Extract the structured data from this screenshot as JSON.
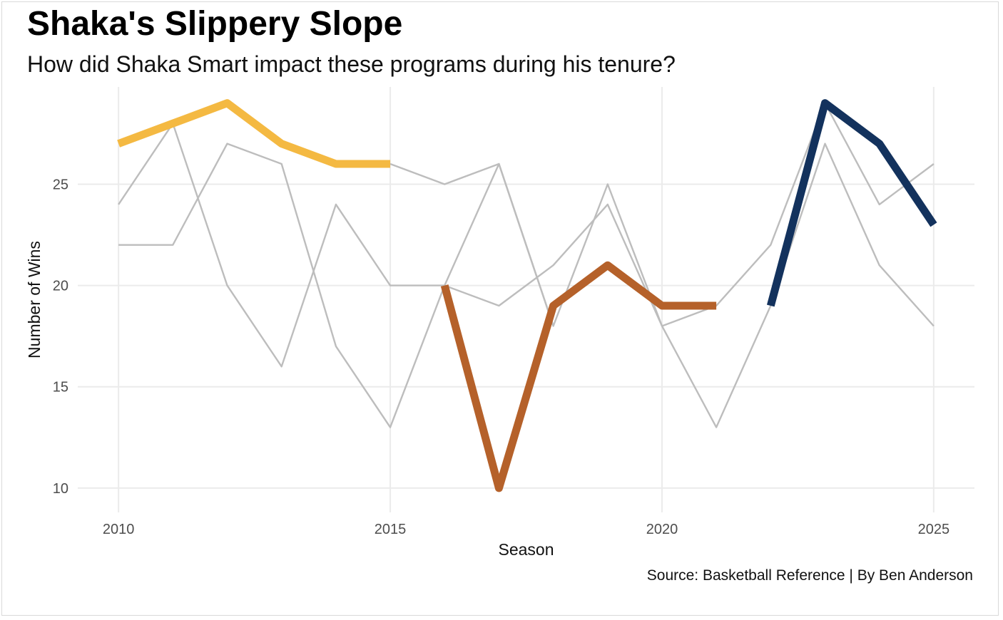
{
  "header": {
    "title": "Shaka's Slippery Slope",
    "subtitle": "How did Shaka Smart impact these programs during his tenure?"
  },
  "caption": "Source: Basketball Reference | By Ben Anderson",
  "chart_data": {
    "type": "line",
    "title": "Shaka's Slippery Slope",
    "subtitle": "How did Shaka Smart impact these programs during his tenure?",
    "xlabel": "Season",
    "ylabel": "Number of Wins",
    "xlim": [
      2009.25,
      2025.75
    ],
    "ylim": [
      8.8,
      29.8
    ],
    "x_ticks": [
      2010,
      2015,
      2020,
      2025
    ],
    "y_ticks": [
      10,
      15,
      20,
      25
    ],
    "x_tick_labels": [
      "2010",
      "2015",
      "2020",
      "2025"
    ],
    "y_tick_labels": [
      "10",
      "15",
      "20",
      "25"
    ],
    "grid": true,
    "legend": "none",
    "background_series": [
      {
        "color": "#bdbdbd",
        "x": [
          2010,
          2011,
          2012,
          2013,
          2014,
          2015,
          2016,
          2017,
          2018,
          2019,
          2020,
          2021,
          2022,
          2023,
          2024,
          2025
        ],
        "values": [
          24,
          28,
          20,
          16,
          24,
          20,
          20,
          19,
          21,
          24,
          18,
          19,
          22,
          29,
          24,
          26
        ]
      },
      {
        "color": "#bdbdbd",
        "x": [
          2010,
          2011,
          2012,
          2013,
          2014,
          2015,
          2016,
          2017,
          2018,
          2019,
          2020,
          2021,
          2022,
          2023,
          2024,
          2025
        ],
        "values": [
          22,
          22,
          27,
          26,
          17,
          13,
          20,
          26,
          18,
          25,
          18,
          13,
          19,
          27,
          21,
          18
        ]
      },
      {
        "color": "#bdbdbd",
        "x": [
          2015,
          2016,
          2017,
          2018
        ],
        "values": [
          26,
          25,
          26,
          18
        ]
      }
    ],
    "series": [
      {
        "color": "#f4b942",
        "x": [
          2010,
          2011,
          2012,
          2013,
          2014,
          2015
        ],
        "values": [
          27,
          28,
          29,
          27,
          26,
          26
        ]
      },
      {
        "color": "#b5612a",
        "x": [
          2016,
          2017,
          2018,
          2019,
          2020,
          2021
        ],
        "values": [
          20,
          10,
          19,
          21,
          19,
          19
        ]
      },
      {
        "color": "#13325d",
        "x": [
          2022,
          2023,
          2024,
          2025
        ],
        "values": [
          19,
          29,
          27,
          23
        ]
      }
    ]
  }
}
